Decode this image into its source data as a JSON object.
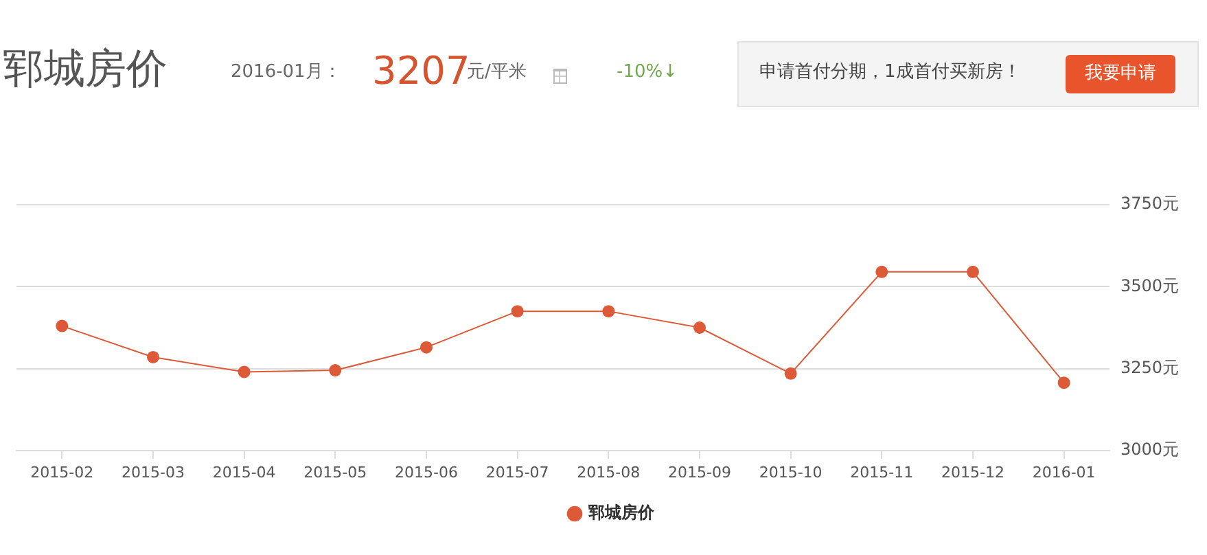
{
  "chart_data": {
    "type": "line",
    "title": "郓城房价",
    "annotations": [
      "2016-01月：",
      "3207",
      "元/平米",
      "-10%↓",
      "申请首付分期，1成首付买新房！",
      "我要申请"
    ],
    "categories": [
      "2015-02",
      "2015-03",
      "2015-04",
      "2015-05",
      "2015-06",
      "2015-07",
      "2015-08",
      "2015-09",
      "2015-10",
      "2015-11",
      "2015-12",
      "2016-01"
    ],
    "series": [
      {
        "name": "郓城房价",
        "color": "#dc5a37",
        "values": [
          3380,
          3285,
          3240,
          3245,
          3315,
          3425,
          3425,
          3375,
          3235,
          3545,
          3545,
          3207
        ]
      }
    ],
    "ylim": [
      3000,
      3750
    ],
    "yticks": [
      {
        "value": 3000,
        "label": "3000元"
      },
      {
        "value": 3250,
        "label": "3250元"
      },
      {
        "value": 3500,
        "label": "3500元"
      },
      {
        "value": 3750,
        "label": "3750元"
      }
    ],
    "grid": "y",
    "legend": "bottom",
    "marker": "circle",
    "line_style": "solid"
  }
}
